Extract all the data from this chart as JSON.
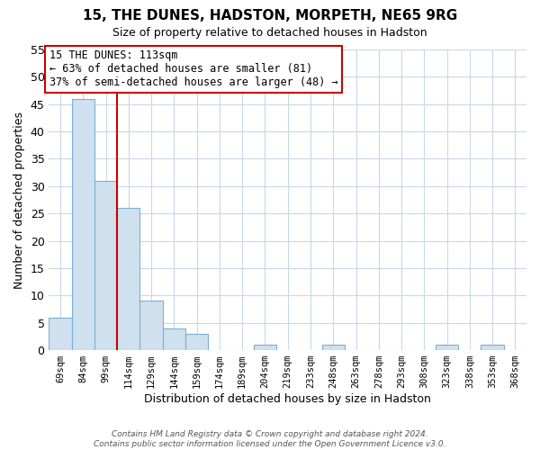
{
  "title": "15, THE DUNES, HADSTON, MORPETH, NE65 9RG",
  "subtitle": "Size of property relative to detached houses in Hadston",
  "xlabel": "Distribution of detached houses by size in Hadston",
  "ylabel": "Number of detached properties",
  "bar_labels": [
    "69sqm",
    "84sqm",
    "99sqm",
    "114sqm",
    "129sqm",
    "144sqm",
    "159sqm",
    "174sqm",
    "189sqm",
    "204sqm",
    "219sqm",
    "233sqm",
    "248sqm",
    "263sqm",
    "278sqm",
    "293sqm",
    "308sqm",
    "323sqm",
    "338sqm",
    "353sqm",
    "368sqm"
  ],
  "bar_values": [
    6,
    46,
    31,
    26,
    9,
    4,
    3,
    0,
    0,
    1,
    0,
    0,
    1,
    0,
    0,
    0,
    0,
    1,
    0,
    1,
    0
  ],
  "bar_color": "#cfe0ee",
  "bar_edge_color": "#7bafd4",
  "ylim": [
    0,
    55
  ],
  "yticks": [
    0,
    5,
    10,
    15,
    20,
    25,
    30,
    35,
    40,
    45,
    50,
    55
  ],
  "vline_x_idx": 3,
  "vline_color": "#cc0000",
  "annotation_title": "15 THE DUNES: 113sqm",
  "annotation_line1": "← 63% of detached houses are smaller (81)",
  "annotation_line2": "37% of semi-detached houses are larger (48) →",
  "footer_line1": "Contains HM Land Registry data © Crown copyright and database right 2024.",
  "footer_line2": "Contains public sector information licensed under the Open Government Licence v3.0.",
  "background_color": "#ffffff",
  "grid_color": "#c8d8e8",
  "title_fontsize": 11,
  "subtitle_fontsize": 9,
  "ylabel_fontsize": 9,
  "xlabel_fontsize": 9,
  "tick_fontsize": 7.5
}
